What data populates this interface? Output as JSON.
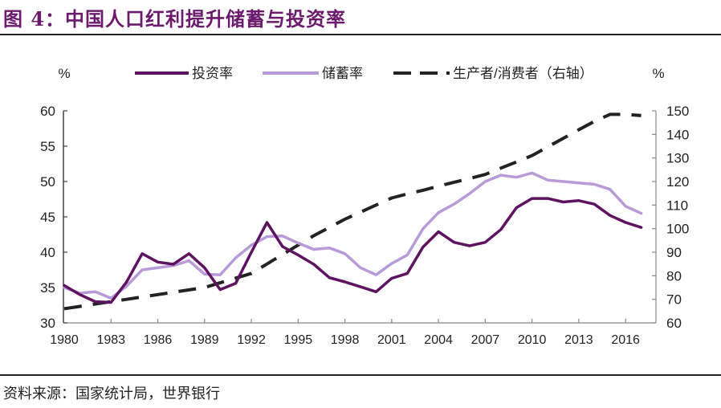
{
  "figure": {
    "title": "图 4：中国人口红利提升储蓄与投资率",
    "source": "资料来源：国家统计局，世界银行"
  },
  "chart_data": {
    "type": "line",
    "title": "图 4：中国人口红利提升储蓄与投资率",
    "x": [
      1980,
      1981,
      1982,
      1983,
      1984,
      1985,
      1986,
      1987,
      1988,
      1989,
      1990,
      1991,
      1992,
      1993,
      1994,
      1995,
      1996,
      1997,
      1998,
      1999,
      2000,
      2001,
      2002,
      2003,
      2004,
      2005,
      2006,
      2007,
      2008,
      2009,
      2010,
      2011,
      2012,
      2013,
      2014,
      2015,
      2016,
      2017
    ],
    "x_ticks": [
      "1980",
      "1983",
      "1986",
      "1989",
      "1992",
      "1995",
      "1998",
      "2001",
      "2004",
      "2007",
      "2010",
      "2013",
      "2016"
    ],
    "xlim": [
      1980,
      2018
    ],
    "y_left": {
      "label": "%",
      "lim": [
        30,
        60
      ],
      "ticks": [
        "30",
        "35",
        "40",
        "45",
        "50",
        "55",
        "60"
      ]
    },
    "y_right": {
      "label": "%",
      "lim": [
        60,
        150
      ],
      "ticks": [
        "60",
        "70",
        "80",
        "90",
        "100",
        "110",
        "120",
        "130",
        "140",
        "150"
      ]
    },
    "legend_position": "top",
    "grid": false,
    "series": [
      {
        "name": "投资率",
        "axis": "left",
        "color": "#5e1361",
        "style": "solid",
        "values": [
          35.3,
          34.0,
          33.0,
          32.9,
          35.8,
          39.8,
          38.6,
          38.3,
          39.8,
          37.8,
          34.7,
          35.6,
          40.0,
          44.2,
          40.8,
          39.6,
          38.3,
          36.4,
          35.8,
          35.1,
          34.4,
          36.3,
          37.0,
          40.7,
          42.9,
          41.4,
          40.9,
          41.4,
          43.2,
          46.3,
          47.6,
          47.6,
          47.1,
          47.3,
          46.8,
          45.2,
          44.2,
          43.5
        ]
      },
      {
        "name": "储蓄率",
        "axis": "left",
        "color": "#b89ad8",
        "style": "solid",
        "values": [
          35.0,
          34.2,
          34.4,
          33.5,
          35.2,
          37.5,
          37.8,
          38.1,
          38.8,
          36.9,
          36.8,
          39.2,
          41.0,
          42.2,
          42.3,
          41.3,
          40.4,
          40.6,
          39.8,
          37.8,
          36.8,
          38.4,
          39.6,
          43.3,
          45.6,
          46.8,
          48.3,
          50.0,
          50.9,
          50.6,
          51.2,
          50.2,
          50.0,
          49.8,
          49.6,
          48.9,
          46.5,
          45.5
        ]
      },
      {
        "name": "生产者/消费者（右轴）",
        "axis": "right",
        "color": "#222222",
        "style": "dashed",
        "values": [
          66.0,
          67.0,
          68.0,
          69.0,
          70.0,
          71.0,
          72.0,
          73.0,
          74.0,
          75.0,
          77.0,
          79.0,
          81.0,
          85.0,
          89.0,
          93.0,
          97.0,
          100.5,
          104.0,
          107.0,
          110.0,
          113.0,
          114.7,
          116.3,
          118.0,
          119.7,
          121.3,
          123.0,
          125.7,
          128.3,
          131.0,
          134.7,
          138.3,
          142.0,
          145.5,
          148.5,
          148.5,
          148.0
        ]
      }
    ]
  }
}
